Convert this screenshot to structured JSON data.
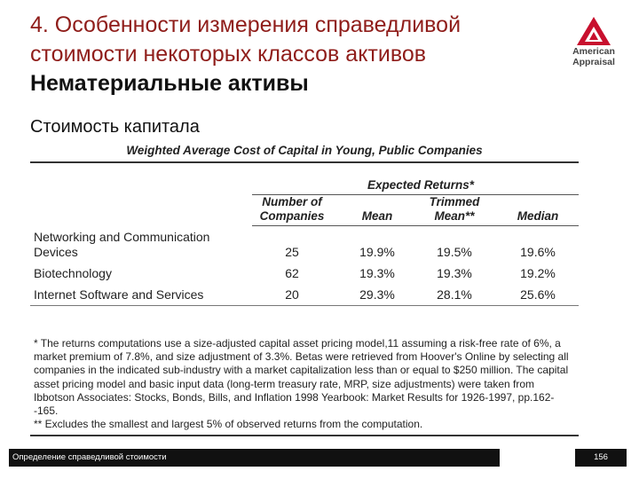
{
  "slide": {
    "title_line1": "4. Особенности измерения справедливой",
    "title_line2": "стоимости некоторых классов активов",
    "title_line3": "Нематериальные активы",
    "subtitle": "Стоимость капитала"
  },
  "logo": {
    "line1": "American",
    "line2": "Appraisal",
    "accent_color": "#c8102e",
    "icon": "triangle-logo-icon"
  },
  "figure": {
    "title": "Weighted Average Cost of Capital in Young, Public Companies",
    "group_header": "Expected Returns*",
    "columns": {
      "number": [
        "Number of",
        "Companies"
      ],
      "mean": "Mean",
      "trimmed": [
        "Trimmed",
        "Mean**"
      ],
      "median": "Median"
    },
    "rows": [
      {
        "label_line1": "Networking and Communication",
        "label_line2": "Devices",
        "number": "25",
        "mean": "19.9%",
        "trimmed": "19.5%",
        "median": "19.6%"
      },
      {
        "label_line1": "Biotechnology",
        "label_line2": "",
        "number": "62",
        "mean": "19.3%",
        "trimmed": "19.3%",
        "median": "19.2%"
      },
      {
        "label_line1": "Internet Software and Services",
        "label_line2": "",
        "number": "20",
        "mean": "29.3%",
        "trimmed": "28.1%",
        "median": "25.6%"
      }
    ],
    "footnote1": "* The returns computations use a size-adjusted capital asset pricing model,11 assuming a risk-free rate of 6%, a market premium of 7.8%, and size adjustment of 3.3%. Betas were retrieved from Hoover's Online by selecting all companies in the indicated sub-industry with a market capitalization less than or equal to $250 million. The capital asset pricing model and basic input data (long-term treasury rate, MRP, size adjustments) were taken from Ibbotson Associates: Stocks, Bonds, Bills, and Inflation 1998 Yearbook: Market Results for 1926-1997, pp.162--165.",
    "footnote2": "** Excludes the smallest and largest 5% of observed returns from the computation."
  },
  "footer": {
    "text": "Определение справедливой стоимости",
    "page": "156"
  }
}
